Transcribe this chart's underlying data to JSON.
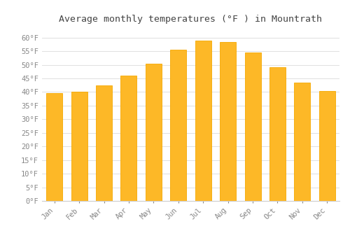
{
  "title": "Average monthly temperatures (°F ) in Mountrath",
  "months": [
    "Jan",
    "Feb",
    "Mar",
    "Apr",
    "May",
    "Jun",
    "Jul",
    "Aug",
    "Sep",
    "Oct",
    "Nov",
    "Dec"
  ],
  "values": [
    39.5,
    40.0,
    42.5,
    46.0,
    50.5,
    55.5,
    59.0,
    58.5,
    54.5,
    49.0,
    43.5,
    40.5
  ],
  "bar_color_face": "#FDB827",
  "bar_color_edge": "#F5A800",
  "background_color": "#FFFFFF",
  "plot_bg_color": "#FFFFFF",
  "grid_color": "#E0E0E0",
  "text_color": "#888888",
  "title_color": "#444444",
  "ylim": [
    0,
    63
  ],
  "yticks": [
    0,
    5,
    10,
    15,
    20,
    25,
    30,
    35,
    40,
    45,
    50,
    55,
    60
  ],
  "title_fontsize": 9.5,
  "tick_fontsize": 7.5,
  "bar_width": 0.65
}
